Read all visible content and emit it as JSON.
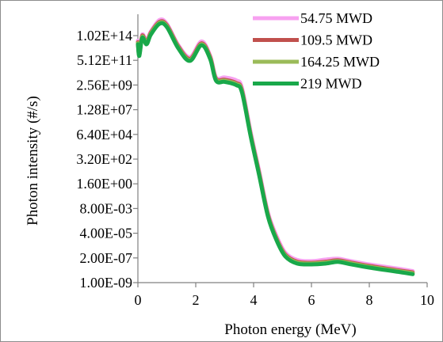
{
  "chart_data": {
    "type": "line",
    "xlabel": "Photon energy  (MeV)",
    "ylabel": "Photon intensity (#/s)",
    "xlim": [
      0,
      10
    ],
    "x_ticks": [
      0,
      2,
      4,
      6,
      8,
      10
    ],
    "x_tick_labels": [
      "0",
      "2",
      "4",
      "6",
      "8",
      "10"
    ],
    "y_scale": "log",
    "y_ticks": [
      1e-09,
      2e-07,
      4e-05,
      0.008,
      1.6,
      320,
      64000,
      12800000,
      2560000000,
      512000000000,
      102000000000000
    ],
    "y_tick_labels": [
      "1.00E-09",
      "2.00E-07",
      "4.00E-05",
      "8.00E-03",
      "1.60E+00",
      "3.20E+02",
      "6.40E+04",
      "1.28E+07",
      "2.56E+09",
      "5.12E+11",
      "1.02E+14"
    ],
    "ylim": [
      1e-09,
      1000000000000000.0
    ],
    "grid": false,
    "legend_position": "top-right",
    "series": [
      {
        "name": "54.75 MWD",
        "color": "#f7a1f0",
        "points": [
          [
            0.0,
            35000000000000.0
          ],
          [
            0.05,
            3000000000000.0
          ],
          [
            0.15,
            130000000000000.0
          ],
          [
            0.3,
            35000000000000.0
          ],
          [
            0.45,
            250000000000000.0
          ],
          [
            0.75,
            3000000000000000.0
          ],
          [
            1.0,
            1300000000000000.0
          ],
          [
            1.4,
            13000000000000.0
          ],
          [
            1.8,
            1000000000000.0
          ],
          [
            2.2,
            30000000000000.0
          ],
          [
            2.5,
            1300000000000.0
          ],
          [
            2.7,
            13000000000.0
          ],
          [
            3.0,
            13000000000.0
          ],
          [
            3.4,
            7000000000.0
          ],
          [
            3.6,
            1300000000.0
          ],
          [
            3.9,
            100000.0
          ],
          [
            4.2,
            20.0
          ],
          [
            4.5,
            0.003
          ],
          [
            4.8,
            2e-05
          ],
          [
            5.1,
            6e-07
          ],
          [
            5.5,
            1.3e-07
          ],
          [
            6.0,
            1e-07
          ],
          [
            6.5,
            1.4e-07
          ],
          [
            6.9,
            1.7e-07
          ],
          [
            7.3,
            1.1e-07
          ],
          [
            8.0,
            5e-08
          ],
          [
            9.0,
            2e-08
          ],
          [
            9.5,
            1.2e-08
          ]
        ]
      },
      {
        "name": "109.5 MWD",
        "color": "#c0504d",
        "points": [
          [
            0.0,
            25000000000000.0
          ],
          [
            0.05,
            2000000000000.0
          ],
          [
            0.15,
            100000000000000.0
          ],
          [
            0.3,
            25000000000000.0
          ],
          [
            0.45,
            200000000000000.0
          ],
          [
            0.75,
            2000000000000000.0
          ],
          [
            1.0,
            1000000000000000.0
          ],
          [
            1.4,
            10000000000000.0
          ],
          [
            1.8,
            700000000000.0
          ],
          [
            2.2,
            20000000000000.0
          ],
          [
            2.5,
            1000000000000.0
          ],
          [
            2.7,
            10000000000.0
          ],
          [
            3.0,
            8000000000.0
          ],
          [
            3.4,
            4000000000.0
          ],
          [
            3.6,
            800000000.0
          ],
          [
            3.9,
            60000.0
          ],
          [
            4.2,
            13.0
          ],
          [
            4.5,
            0.002
          ],
          [
            4.8,
            1.2e-05
          ],
          [
            5.1,
            4e-07
          ],
          [
            5.5,
            9e-08
          ],
          [
            6.0,
            7e-08
          ],
          [
            6.5,
            9e-08
          ],
          [
            6.9,
            1.2e-07
          ],
          [
            7.3,
            8e-08
          ],
          [
            8.0,
            3.6e-08
          ],
          [
            9.0,
            1.4e-08
          ],
          [
            9.5,
            9e-09
          ]
        ]
      },
      {
        "name": "164.25 MWD",
        "color": "#9bbb59",
        "points": [
          [
            0.0,
            20000000000000.0
          ],
          [
            0.05,
            1600000000000.0
          ],
          [
            0.15,
            80000000000000.0
          ],
          [
            0.3,
            20000000000000.0
          ],
          [
            0.45,
            160000000000000.0
          ],
          [
            0.75,
            1600000000000000.0
          ],
          [
            1.0,
            800000000000000.0
          ],
          [
            1.4,
            8000000000000.0
          ],
          [
            1.8,
            550000000000.0
          ],
          [
            2.2,
            16000000000000.0
          ],
          [
            2.5,
            800000000000.0
          ],
          [
            2.7,
            8000000000.0
          ],
          [
            3.0,
            6500000000.0
          ],
          [
            3.4,
            3200000000.0
          ],
          [
            3.6,
            650000000.0
          ],
          [
            3.9,
            50000.0
          ],
          [
            4.2,
            10.0
          ],
          [
            4.5,
            0.0016
          ],
          [
            4.8,
            1e-05
          ],
          [
            5.1,
            3.3e-07
          ],
          [
            5.5,
            7.5e-08
          ],
          [
            6.0,
            6e-08
          ],
          [
            6.5,
            7.5e-08
          ],
          [
            6.9,
            1e-07
          ],
          [
            7.3,
            6.8e-08
          ],
          [
            8.0,
            3e-08
          ],
          [
            9.0,
            1.2e-08
          ],
          [
            9.5,
            7.5e-09
          ]
        ]
      },
      {
        "name": "219 MWD",
        "color": "#19a84a",
        "points": [
          [
            0.0,
            16000000000000.0
          ],
          [
            0.05,
            1300000000000.0
          ],
          [
            0.15,
            65000000000000.0
          ],
          [
            0.3,
            16000000000000.0
          ],
          [
            0.45,
            130000000000000.0
          ],
          [
            0.75,
            1300000000000000.0
          ],
          [
            1.0,
            650000000000000.0
          ],
          [
            1.4,
            6500000000000.0
          ],
          [
            1.8,
            450000000000.0
          ],
          [
            2.2,
            13000000000000.0
          ],
          [
            2.5,
            650000000000.0
          ],
          [
            2.7,
            6500000000.0
          ],
          [
            3.0,
            5000000000.0
          ],
          [
            3.4,
            2500000000.0
          ],
          [
            3.6,
            500000000.0
          ],
          [
            3.9,
            40000.0
          ],
          [
            4.2,
            8.0
          ],
          [
            4.5,
            0.0013
          ],
          [
            4.8,
            8e-06
          ],
          [
            5.1,
            2.7e-07
          ],
          [
            5.5,
            6e-08
          ],
          [
            6.0,
            5e-08
          ],
          [
            6.5,
            6e-08
          ],
          [
            6.9,
            8.5e-08
          ],
          [
            7.3,
            5.5e-08
          ],
          [
            8.0,
            2.5e-08
          ],
          [
            9.0,
            1e-08
          ],
          [
            9.5,
            6.2e-09
          ]
        ]
      }
    ]
  }
}
